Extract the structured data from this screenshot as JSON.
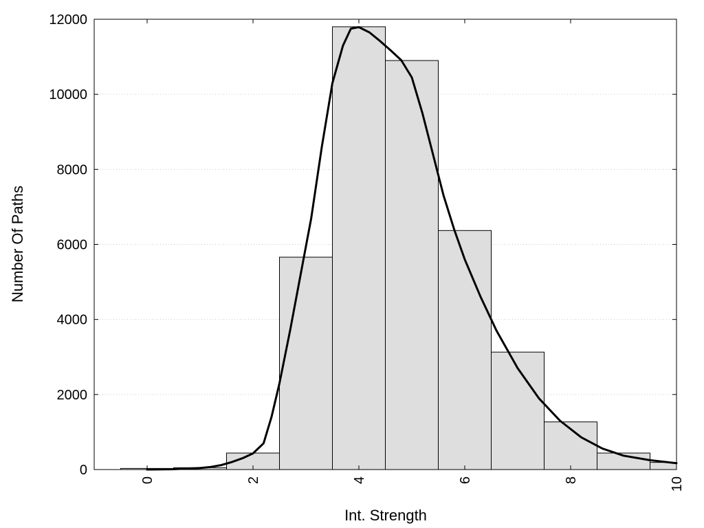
{
  "chart_data": {
    "type": "bar",
    "title": "",
    "xlabel": "Int. Strength",
    "ylabel": "Number Of Paths",
    "xlim": [
      -1,
      10
    ],
    "ylim": [
      0,
      12000
    ],
    "x_ticks": [
      "0",
      "2",
      "4",
      "6",
      "8",
      "10"
    ],
    "y_ticks": [
      "0",
      "2000",
      "4000",
      "6000",
      "8000",
      "10000",
      "12000"
    ],
    "grid": "horizontal dotted",
    "legend": "none",
    "bar_color": "#dedede",
    "curve_color": "#000000",
    "histogram": {
      "bin_centers": [
        0,
        1,
        2,
        3,
        4,
        5,
        6,
        7,
        8,
        9,
        10
      ],
      "bin_width": 1,
      "values": [
        30,
        50,
        440,
        5660,
        11800,
        10900,
        6370,
        3130,
        1270,
        440,
        190
      ]
    },
    "fit_curve": {
      "x": [
        0,
        0.5,
        1,
        1.2,
        1.4,
        1.6,
        1.8,
        2,
        2.2,
        2.35,
        2.5,
        2.7,
        2.9,
        3.1,
        3.3,
        3.5,
        3.7,
        3.85,
        4,
        4.2,
        4.4,
        4.6,
        4.8,
        5,
        5.2,
        5.4,
        5.6,
        5.8,
        6,
        6.3,
        6.6,
        7,
        7.4,
        7.8,
        8.2,
        8.6,
        9,
        9.5,
        10
      ],
      "y": [
        0,
        10,
        40,
        70,
        120,
        200,
        300,
        430,
        700,
        1400,
        2300,
        3700,
        5200,
        6700,
        8600,
        10300,
        11300,
        11750,
        11790,
        11650,
        11420,
        11170,
        10910,
        10450,
        9500,
        8400,
        7300,
        6400,
        5600,
        4600,
        3700,
        2700,
        1900,
        1300,
        860,
        560,
        370,
        250,
        170
      ]
    }
  }
}
